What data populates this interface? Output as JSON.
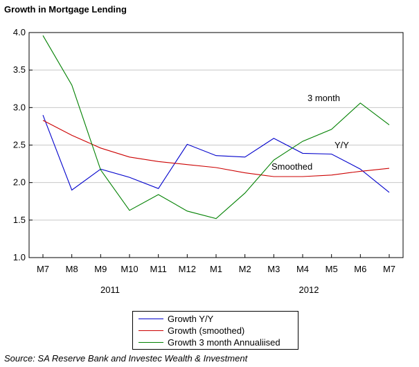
{
  "chart_data": {
    "type": "line",
    "title": "Growth in Mortgage Lending",
    "categories": [
      "M7",
      "M8",
      "M9",
      "M10",
      "M11",
      "M12",
      "M1",
      "M2",
      "M3",
      "M4",
      "M5",
      "M6",
      "M7"
    ],
    "year_labels": [
      "2011",
      "2012"
    ],
    "ylim": [
      1.0,
      4.0
    ],
    "yticks": [
      "1.0",
      "1.5",
      "2.0",
      "2.5",
      "3.0",
      "3.5",
      "4.0"
    ],
    "grid": true,
    "legend_position": "bottom-center",
    "series": [
      {
        "name": "Growth Y/Y",
        "color": "#0000CC",
        "values": [
          2.9,
          1.9,
          2.18,
          2.07,
          1.92,
          2.51,
          2.36,
          2.34,
          2.59,
          2.39,
          2.38,
          2.18,
          1.87
        ]
      },
      {
        "name": "Growth (smoothed)",
        "color": "#CC0000",
        "values": [
          2.83,
          2.63,
          2.46,
          2.34,
          2.28,
          2.24,
          2.2,
          2.13,
          2.08,
          2.08,
          2.1,
          2.15,
          2.19
        ]
      },
      {
        "name": "Growth 3 month Annualiised",
        "color": "#008000",
        "values": [
          3.96,
          3.3,
          2.17,
          1.63,
          1.84,
          1.62,
          1.52,
          1.86,
          2.3,
          2.55,
          2.71,
          3.06,
          2.77
        ]
      }
    ],
    "annotations": [
      "3  month",
      "Y/Y",
      "Smoothed"
    ]
  },
  "source": "Source: SA Reserve Bank and Investec Wealth & Investment"
}
